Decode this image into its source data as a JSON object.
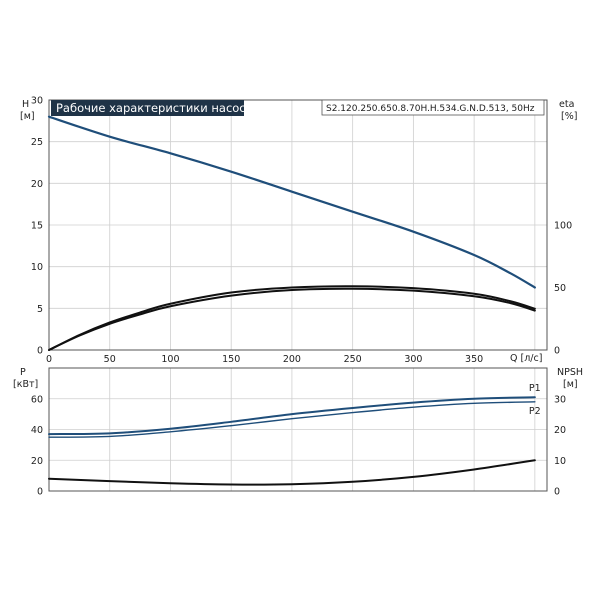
{
  "header": {
    "title": "Рабочие характеристики насоса",
    "model": "S2.120.250.650.8.70H.H.534.G.N.D.513, 50Hz"
  },
  "colors": {
    "head": "#1f4e7a",
    "power": "#1f4e7a",
    "efficiency": "#111111",
    "npsh": "#111111",
    "grid": "#cfcfcf",
    "title_bg": "#1f3347"
  },
  "chart_data": [
    {
      "type": "line",
      "panel": "head-efficiency",
      "title": "Рабочие характеристики насоса",
      "xlabel": "Q [л/с]",
      "xlim": [
        0,
        410
      ],
      "xticks": [
        0,
        50,
        100,
        150,
        200,
        250,
        300,
        350
      ],
      "ylabel": "H [м]",
      "ylabel_parts": [
        "H",
        "[м]"
      ],
      "ylim": [
        0,
        30
      ],
      "yticks": [
        0,
        5,
        10,
        15,
        20,
        25,
        30
      ],
      "y2label": "eta [%]",
      "y2label_parts": [
        "eta",
        "[%]"
      ],
      "y2lim": [
        0,
        200
      ],
      "y2ticks": [
        0,
        50,
        100
      ],
      "grid": true,
      "series": [
        {
          "axis": "left",
          "color": "#1f4e7a",
          "points": [
            [
              0,
              28.0
            ],
            [
              50,
              25.6
            ],
            [
              100,
              23.6
            ],
            [
              150,
              21.4
            ],
            [
              200,
              19.0
            ],
            [
              250,
              16.6
            ],
            [
              300,
              14.2
            ],
            [
              350,
              11.4
            ],
            [
              380,
              9.2
            ],
            [
              400,
              7.5
            ]
          ]
        },
        {
          "axis": "right",
          "color": "#111111",
          "points": [
            [
              0,
              0
            ],
            [
              25,
              12
            ],
            [
              50,
              22
            ],
            [
              75,
              30
            ],
            [
              100,
              37
            ],
            [
              150,
              46
            ],
            [
              200,
              50
            ],
            [
              250,
              51
            ],
            [
              300,
              49.5
            ],
            [
              350,
              45
            ],
            [
              380,
              39
            ],
            [
              400,
              33
            ]
          ]
        },
        {
          "axis": "right",
          "color": "#111111",
          "points": [
            [
              0,
              0
            ],
            [
              25,
              11.5
            ],
            [
              50,
              21
            ],
            [
              75,
              28.5
            ],
            [
              100,
              35
            ],
            [
              150,
              43.5
            ],
            [
              200,
              48
            ],
            [
              250,
              49
            ],
            [
              300,
              47.5
            ],
            [
              350,
              43
            ],
            [
              380,
              37.5
            ],
            [
              400,
              31.5
            ]
          ]
        }
      ]
    },
    {
      "type": "line",
      "panel": "power-npsh",
      "xlim": [
        0,
        410
      ],
      "ylabel": "P [кВт]",
      "ylabel_parts": [
        "P",
        "[кВт]"
      ],
      "ylim": [
        0,
        80
      ],
      "yticks": [
        0,
        20,
        40,
        60
      ],
      "y2label": "NPSH [м]",
      "y2label_parts": [
        "NPSH",
        "[м]"
      ],
      "y2lim": [
        0,
        40
      ],
      "y2ticks": [
        0,
        10,
        20,
        30
      ],
      "grid": true,
      "series": [
        {
          "name": "P1",
          "axis": "left",
          "color": "#1f4e7a",
          "points": [
            [
              0,
              37
            ],
            [
              50,
              37.5
            ],
            [
              100,
              40.5
            ],
            [
              150,
              45
            ],
            [
              200,
              50
            ],
            [
              250,
              54
            ],
            [
              300,
              57.5
            ],
            [
              350,
              60
            ],
            [
              400,
              61
            ]
          ]
        },
        {
          "name": "P2",
          "axis": "left",
          "color": "#1f4e7a",
          "points": [
            [
              0,
              35
            ],
            [
              50,
              35.5
            ],
            [
              100,
              38.5
            ],
            [
              150,
              42.5
            ],
            [
              200,
              47
            ],
            [
              250,
              51
            ],
            [
              300,
              54.5
            ],
            [
              350,
              57
            ],
            [
              400,
              58
            ]
          ]
        },
        {
          "axis": "right",
          "color": "#111111",
          "points": [
            [
              0,
              4.0
            ],
            [
              50,
              3.2
            ],
            [
              100,
              2.5
            ],
            [
              150,
              2.1
            ],
            [
              200,
              2.2
            ],
            [
              250,
              3.0
            ],
            [
              300,
              4.6
            ],
            [
              350,
              7.0
            ],
            [
              400,
              10.0
            ]
          ]
        }
      ]
    }
  ]
}
